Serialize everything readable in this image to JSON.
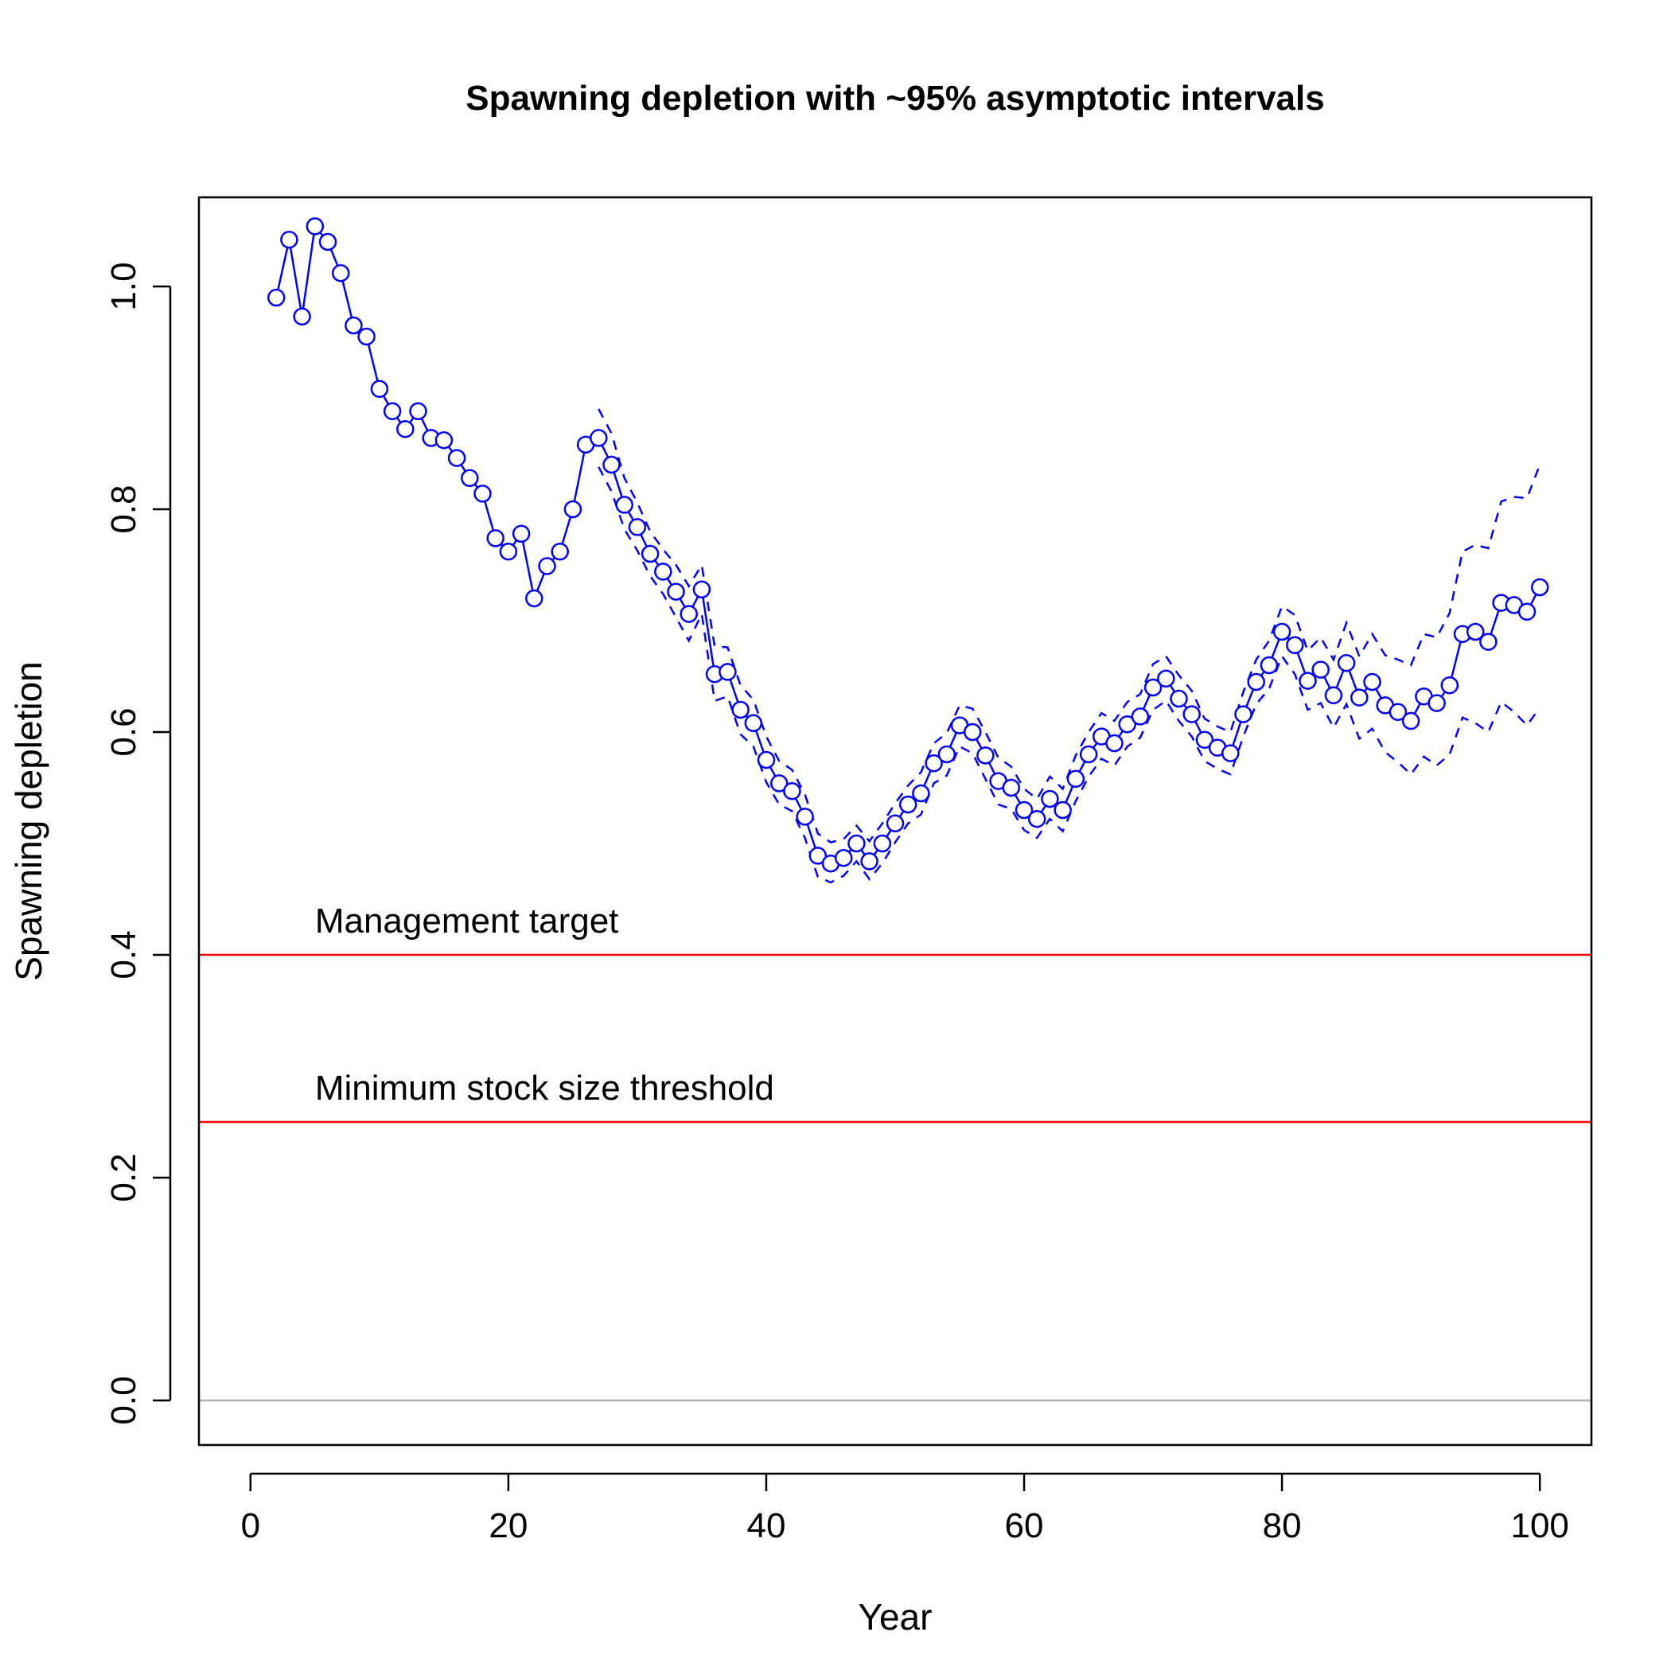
{
  "chart_data": {
    "type": "line",
    "title": "Spawning depletion with ~95% asymptotic intervals",
    "xlabel": "Year",
    "ylabel": "Spawning depletion",
    "xlim": [
      -4,
      104
    ],
    "ylim": [
      -0.04,
      1.08
    ],
    "xticks": [
      0,
      20,
      40,
      60,
      80,
      100
    ],
    "yticks": [
      0.0,
      0.2,
      0.4,
      0.6,
      0.8,
      1.0
    ],
    "xtick_labels": [
      "0",
      "20",
      "40",
      "60",
      "80",
      "100"
    ],
    "ytick_labels": [
      "0.0",
      "0.2",
      "0.4",
      "0.6",
      "0.8",
      "1.0"
    ],
    "grid": false,
    "reference_lines": [
      {
        "y": 0.4,
        "label": "Management target",
        "color": "#ff0000"
      },
      {
        "y": 0.25,
        "label": "Minimum stock size threshold",
        "color": "#ff0000"
      },
      {
        "y": 0.0,
        "label": "",
        "color": "#b3b3b3"
      }
    ],
    "series_color": "#0000ff",
    "series": [
      {
        "x": [
          2,
          3,
          4,
          5,
          6,
          7,
          8,
          9,
          10,
          11,
          12,
          13,
          14,
          15,
          16,
          17,
          18,
          19,
          20,
          21,
          22,
          23,
          24,
          25,
          26,
          27,
          28,
          29,
          30,
          31,
          32,
          33,
          34,
          35,
          36,
          37,
          38,
          39,
          40,
          41,
          42,
          43,
          44,
          45,
          46,
          47,
          48,
          49,
          50,
          51,
          52,
          53,
          54,
          55,
          56,
          57,
          58,
          59,
          60,
          61,
          62,
          63,
          64,
          65,
          66,
          67,
          68,
          69,
          70,
          71,
          72,
          73,
          74,
          75,
          76,
          77,
          78,
          79,
          80,
          81,
          82,
          83,
          84,
          85,
          86,
          87,
          88,
          89,
          90,
          91,
          92,
          93,
          94,
          95,
          96,
          97,
          98,
          99,
          100
        ],
        "values": [
          0.99,
          1.042,
          0.973,
          1.054,
          1.04,
          1.012,
          0.965,
          0.955,
          0.908,
          0.888,
          0.872,
          0.888,
          0.864,
          0.862,
          0.846,
          0.828,
          0.814,
          0.774,
          0.762,
          0.778,
          0.72,
          0.749,
          0.762,
          0.8,
          0.858,
          0.864,
          0.84,
          0.804,
          0.784,
          0.76,
          0.744,
          0.726,
          0.706,
          0.728,
          0.652,
          0.654,
          0.62,
          0.608,
          0.575,
          0.554,
          0.547,
          0.524,
          0.489,
          0.482,
          0.487,
          0.5,
          0.484,
          0.5,
          0.518,
          0.535,
          0.545,
          0.572,
          0.58,
          0.606,
          0.6,
          0.579,
          0.556,
          0.55,
          0.53,
          0.522,
          0.54,
          0.53,
          0.558,
          0.58,
          0.596,
          0.59,
          0.607,
          0.614,
          0.64,
          0.648,
          0.63,
          0.616,
          0.593,
          0.586,
          0.581,
          0.616,
          0.645,
          0.66,
          0.69,
          0.678,
          0.646,
          0.656,
          0.633,
          0.662,
          0.631,
          0.645,
          0.624,
          0.618,
          0.61,
          0.632,
          0.626,
          0.642,
          0.688,
          0.69,
          0.681,
          0.716,
          0.714,
          0.708,
          0.73
        ]
      }
    ],
    "intervals": {
      "x": [
        27,
        28,
        29,
        30,
        31,
        32,
        33,
        34,
        35,
        36,
        37,
        38,
        39,
        40,
        41,
        42,
        43,
        44,
        45,
        46,
        47,
        48,
        49,
        50,
        51,
        52,
        53,
        54,
        55,
        56,
        57,
        58,
        59,
        60,
        61,
        62,
        63,
        64,
        65,
        66,
        67,
        68,
        69,
        70,
        71,
        72,
        73,
        74,
        75,
        76,
        77,
        78,
        79,
        80,
        81,
        82,
        83,
        84,
        85,
        86,
        87,
        88,
        89,
        90,
        91,
        92,
        93,
        94,
        95,
        96,
        97,
        98,
        99,
        100
      ],
      "lower": [
        0.838,
        0.816,
        0.782,
        0.763,
        0.74,
        0.724,
        0.703,
        0.682,
        0.706,
        0.628,
        0.632,
        0.598,
        0.587,
        0.555,
        0.535,
        0.529,
        0.505,
        0.47,
        0.465,
        0.471,
        0.484,
        0.468,
        0.482,
        0.501,
        0.518,
        0.526,
        0.554,
        0.561,
        0.587,
        0.581,
        0.558,
        0.535,
        0.531,
        0.512,
        0.505,
        0.522,
        0.511,
        0.538,
        0.56,
        0.576,
        0.57,
        0.587,
        0.595,
        0.62,
        0.628,
        0.61,
        0.596,
        0.574,
        0.567,
        0.562,
        0.596,
        0.625,
        0.639,
        0.668,
        0.652,
        0.62,
        0.626,
        0.604,
        0.625,
        0.594,
        0.603,
        0.582,
        0.573,
        0.562,
        0.578,
        0.57,
        0.58,
        0.613,
        0.608,
        0.6,
        0.627,
        0.618,
        0.606,
        0.622
      ],
      "upper": [
        0.89,
        0.868,
        0.828,
        0.806,
        0.78,
        0.764,
        0.75,
        0.731,
        0.75,
        0.677,
        0.676,
        0.642,
        0.629,
        0.596,
        0.574,
        0.566,
        0.544,
        0.509,
        0.501,
        0.504,
        0.516,
        0.502,
        0.518,
        0.536,
        0.552,
        0.564,
        0.59,
        0.599,
        0.624,
        0.621,
        0.6,
        0.577,
        0.569,
        0.549,
        0.54,
        0.56,
        0.549,
        0.579,
        0.6,
        0.617,
        0.61,
        0.627,
        0.634,
        0.661,
        0.668,
        0.651,
        0.637,
        0.612,
        0.605,
        0.6,
        0.636,
        0.665,
        0.682,
        0.713,
        0.705,
        0.673,
        0.685,
        0.665,
        0.698,
        0.668,
        0.688,
        0.669,
        0.665,
        0.66,
        0.688,
        0.685,
        0.707,
        0.762,
        0.768,
        0.765,
        0.807,
        0.811,
        0.81,
        0.84
      ]
    }
  }
}
